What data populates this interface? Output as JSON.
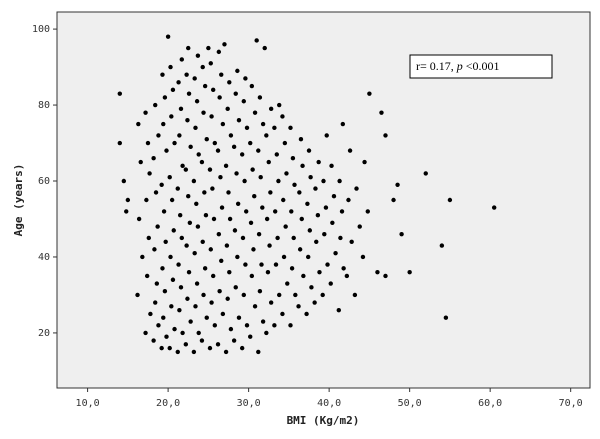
{
  "chart_data": {
    "type": "scatter",
    "x_label": "BMI (Kg/m2)",
    "y_label": "Age (years)",
    "annotation": {
      "prefix": "r= 0.17, ",
      "italic": "p",
      "suffix": " <0.001"
    },
    "color": "#000000",
    "xlim": [
      6.2,
      72.4
    ],
    "ylim": [
      5.5,
      104.5
    ],
    "xticks": [
      {
        "value": 10,
        "label": "10,0"
      },
      {
        "value": 20,
        "label": "20,0"
      },
      {
        "value": 30,
        "label": "30,0"
      },
      {
        "value": 40,
        "label": "40,0"
      },
      {
        "value": 50,
        "label": "50,0"
      },
      {
        "value": 60,
        "label": "60,0"
      },
      {
        "value": 70,
        "label": "70,0"
      }
    ],
    "yticks": [
      20,
      40,
      60,
      80,
      100
    ],
    "x": [
      16.2,
      16.8,
      16.4,
      16.6,
      16.3,
      17.2,
      17.8,
      17.4,
      17.6,
      17.3,
      17.7,
      17.5,
      17.2,
      18.2,
      18.8,
      18.4,
      18.6,
      18.3,
      18.7,
      18.5,
      18.2,
      18.8,
      18.4,
      19.2,
      19.8,
      19.4,
      19.6,
      19.3,
      19.7,
      19.5,
      19.2,
      19.8,
      19.4,
      19.6,
      19.3,
      20.2,
      20.8,
      20.4,
      20.6,
      20.3,
      20.7,
      20.5,
      20.2,
      20.8,
      20.4,
      20.6,
      20.3,
      21.2,
      21.8,
      21.4,
      21.6,
      21.3,
      21.7,
      21.5,
      21.2,
      21.8,
      21.4,
      21.6,
      21.3,
      21.7,
      22.2,
      22.8,
      22.4,
      22.6,
      22.3,
      22.7,
      22.5,
      22.2,
      22.8,
      22.4,
      22.6,
      22.3,
      23.2,
      23.8,
      23.4,
      23.6,
      23.3,
      23.7,
      23.5,
      23.2,
      23.8,
      23.4,
      23.6,
      23.3,
      23.7,
      24.2,
      24.8,
      24.4,
      24.6,
      24.3,
      24.7,
      24.5,
      24.2,
      24.8,
      24.4,
      24.6,
      24.3,
      25.2,
      25.8,
      25.4,
      25.6,
      25.3,
      25.7,
      25.5,
      25.2,
      25.8,
      25.4,
      25.6,
      25.3,
      26.2,
      26.8,
      26.4,
      26.6,
      26.3,
      26.7,
      26.5,
      26.2,
      26.8,
      26.4,
      26.6,
      26.3,
      27.2,
      27.8,
      27.4,
      27.6,
      27.3,
      27.7,
      27.5,
      27.2,
      27.8,
      27.4,
      27.6,
      28.2,
      28.8,
      28.4,
      28.6,
      28.3,
      28.7,
      28.5,
      28.2,
      28.8,
      28.4,
      28.6,
      29.2,
      29.8,
      29.4,
      29.6,
      29.3,
      29.7,
      29.5,
      29.2,
      29.8,
      29.4,
      29.6,
      30.2,
      30.8,
      30.4,
      30.6,
      30.3,
      30.7,
      30.5,
      30.2,
      30.8,
      30.4,
      31.2,
      31.8,
      31.4,
      31.6,
      31.3,
      31.7,
      31.5,
      31.2,
      31.8,
      31.4,
      32.2,
      32.8,
      32.4,
      32.6,
      32.3,
      32.7,
      32.5,
      32.2,
      32.8,
      33.2,
      33.8,
      33.4,
      33.6,
      33.3,
      33.7,
      33.5,
      33.2,
      33.8,
      34.2,
      34.8,
      34.4,
      34.6,
      34.3,
      34.7,
      34.5,
      34.2,
      35.2,
      35.8,
      35.4,
      35.6,
      35.3,
      35.7,
      35.5,
      35.2,
      36.2,
      36.8,
      36.4,
      36.6,
      36.3,
      36.7,
      36.5,
      37.2,
      37.8,
      37.4,
      37.6,
      37.3,
      37.7,
      37.5,
      38.2,
      38.8,
      38.4,
      38.6,
      38.3,
      38.7,
      39.2,
      39.8,
      39.4,
      39.6,
      39.3,
      39.7,
      40.2,
      40.8,
      40.4,
      40.6,
      40.3,
      41.2,
      41.8,
      41.4,
      41.6,
      41.3,
      41.7,
      42.2,
      42.8,
      42.4,
      42.6,
      43.2,
      43.8,
      43.4,
      44.2,
      44.8,
      44.4,
      14,
      14,
      14.5,
      14.8,
      15,
      52,
      55,
      60.5,
      54,
      54.5,
      50,
      49,
      47,
      45,
      46.5,
      48.5,
      48,
      47,
      46,
      20,
      27,
      31,
      32,
      25,
      22.5
    ],
    "values": [
      30,
      40,
      50,
      65,
      75,
      20,
      25,
      35,
      45,
      55,
      62,
      70,
      78,
      18,
      22,
      28,
      33,
      42,
      48,
      57,
      66,
      72,
      80,
      16,
      19,
      24,
      31,
      37,
      44,
      52,
      59,
      68,
      75,
      82,
      88,
      16,
      21,
      27,
      34,
      40,
      47,
      55,
      61,
      70,
      77,
      84,
      90,
      15,
      20,
      26,
      32,
      38,
      45,
      51,
      58,
      64,
      72,
      79,
      86,
      92,
      17,
      23,
      29,
      36,
      43,
      49,
      56,
      63,
      69,
      76,
      83,
      88,
      15,
      20,
      27,
      33,
      41,
      48,
      54,
      60,
      67,
      74,
      81,
      87,
      93,
      18,
      24,
      30,
      37,
      44,
      51,
      57,
      65,
      71,
      78,
      85,
      90,
      16,
      22,
      28,
      35,
      42,
      50,
      58,
      63,
      70,
      77,
      84,
      91,
      17,
      25,
      31,
      39,
      46,
      53,
      61,
      68,
      75,
      82,
      88,
      94,
      15,
      21,
      29,
      36,
      43,
      50,
      57,
      64,
      72,
      79,
      86,
      18,
      24,
      32,
      40,
      47,
      54,
      62,
      69,
      76,
      83,
      89,
      16,
      22,
      30,
      38,
      45,
      52,
      60,
      67,
      74,
      81,
      87,
      19,
      27,
      35,
      42,
      49,
      56,
      63,
      70,
      78,
      85,
      15,
      23,
      31,
      38,
      46,
      53,
      61,
      68,
      75,
      82,
      20,
      28,
      36,
      43,
      50,
      57,
      65,
      72,
      79,
      22,
      30,
      38,
      45,
      52,
      60,
      67,
      74,
      80,
      25,
      33,
      40,
      48,
      55,
      62,
      70,
      77,
      22,
      30,
      37,
      45,
      52,
      59,
      66,
      74,
      27,
      35,
      42,
      50,
      57,
      64,
      71,
      25,
      32,
      40,
      47,
      54,
      61,
      68,
      28,
      36,
      44,
      51,
      58,
      65,
      30,
      38,
      46,
      53,
      60,
      72,
      33,
      41,
      49,
      56,
      64,
      26,
      37,
      45,
      52,
      60,
      75,
      35,
      44,
      55,
      68,
      30,
      48,
      58,
      40,
      52,
      65,
      83,
      70,
      60,
      52,
      55,
      62,
      55,
      53,
      43,
      24,
      36,
      46,
      72,
      83,
      78,
      59,
      55,
      35,
      36,
      98,
      96,
      97,
      95,
      95,
      95
    ]
  }
}
